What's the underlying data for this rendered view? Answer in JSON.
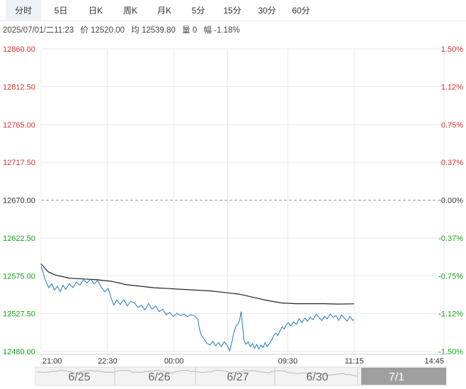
{
  "tabs": [
    {
      "label": "分时",
      "active": true
    },
    {
      "label": "5日",
      "active": false
    },
    {
      "label": "日K",
      "active": false
    },
    {
      "label": "周K",
      "active": false
    },
    {
      "label": "月K",
      "active": false
    },
    {
      "label": "5分",
      "active": false
    },
    {
      "label": "15分",
      "active": false
    },
    {
      "label": "30分",
      "active": false
    },
    {
      "label": "60分",
      "active": false
    }
  ],
  "info": {
    "datetime": "2025/07/01/二11:23",
    "price": "价 12520.00",
    "avg": "均 12539.80",
    "volume": "量 0",
    "change": "幅 -1.18%"
  },
  "colors": {
    "up": "#e03030",
    "down": "#19a119",
    "flat": "#333333",
    "price_line": "#1f78c8",
    "avg_line": "#222222",
    "grid": "#e8e8e8",
    "ref_line": "#999999"
  },
  "chart_data": {
    "type": "line",
    "title": "",
    "ylim": [
      12480,
      12860
    ],
    "prev_close": 12670,
    "y_ticks": [
      "12860.00",
      "12812.50",
      "12765.00",
      "12717.50",
      "12670.00",
      "12622.50",
      "12575.00",
      "12527.50",
      "12480.00"
    ],
    "pct_ticks": [
      "1.50%",
      "1.12%",
      "0.75%",
      "0.37%",
      "0.00%",
      "-0.37%",
      "-0.75%",
      "-1.12%",
      "-1.50%"
    ],
    "x_ticks": [
      "21:00",
      "22:30",
      "00:00",
      "09:30",
      "11:15",
      "14:45"
    ],
    "session_minutes": 570,
    "current_minute": 443,
    "series": [
      {
        "name": "",
        "style": "price",
        "points": [
          [
            0,
            12587
          ],
          [
            3,
            12579
          ],
          [
            5,
            12572
          ],
          [
            8,
            12566
          ],
          [
            11,
            12560
          ],
          [
            15,
            12565
          ],
          [
            19,
            12557
          ],
          [
            23,
            12562
          ],
          [
            27,
            12555
          ],
          [
            31,
            12563
          ],
          [
            35,
            12558
          ],
          [
            40,
            12565
          ],
          [
            45,
            12560
          ],
          [
            50,
            12567
          ],
          [
            55,
            12563
          ],
          [
            60,
            12570
          ],
          [
            65,
            12566
          ],
          [
            70,
            12571
          ],
          [
            75,
            12565
          ],
          [
            80,
            12569
          ],
          [
            85,
            12561
          ],
          [
            90,
            12555
          ],
          [
            95,
            12559
          ],
          [
            100,
            12545
          ],
          [
            103,
            12538
          ],
          [
            107,
            12545
          ],
          [
            112,
            12539
          ],
          [
            117,
            12545
          ],
          [
            122,
            12537
          ],
          [
            127,
            12543
          ],
          [
            132,
            12541
          ],
          [
            137,
            12535
          ],
          [
            142,
            12538
          ],
          [
            147,
            12532
          ],
          [
            152,
            12540
          ],
          [
            157,
            12533
          ],
          [
            162,
            12537
          ],
          [
            167,
            12530
          ],
          [
            172,
            12533
          ],
          [
            177,
            12526
          ],
          [
            182,
            12529
          ],
          [
            187,
            12524
          ],
          [
            192,
            12528
          ],
          [
            197,
            12525
          ],
          [
            202,
            12527
          ],
          [
            207,
            12524
          ],
          [
            212,
            12526
          ],
          [
            217,
            12525
          ],
          [
            222,
            12520
          ],
          [
            224,
            12508
          ],
          [
            227,
            12500
          ],
          [
            231,
            12495
          ],
          [
            235,
            12490
          ],
          [
            239,
            12488
          ],
          [
            243,
            12493
          ],
          [
            247,
            12487
          ],
          [
            251,
            12491
          ],
          [
            255,
            12486
          ],
          [
            259,
            12492
          ],
          [
            263,
            12488
          ],
          [
            267,
            12481
          ],
          [
            270,
            12492
          ],
          [
            273,
            12505
          ],
          [
            276,
            12512
          ],
          [
            279,
            12515
          ],
          [
            281,
            12520
          ],
          [
            283,
            12530
          ],
          [
            285,
            12512
          ],
          [
            287,
            12494
          ],
          [
            290,
            12489
          ],
          [
            293,
            12492
          ],
          [
            296,
            12486
          ],
          [
            299,
            12490
          ],
          [
            302,
            12484
          ],
          [
            305,
            12489
          ],
          [
            308,
            12483
          ],
          [
            311,
            12488
          ],
          [
            314,
            12485
          ],
          [
            317,
            12491
          ],
          [
            320,
            12486
          ],
          [
            323,
            12490
          ],
          [
            326,
            12494
          ],
          [
            329,
            12500
          ],
          [
            332,
            12503
          ],
          [
            335,
            12500
          ],
          [
            338,
            12506
          ],
          [
            341,
            12511
          ],
          [
            344,
            12508
          ],
          [
            347,
            12514
          ],
          [
            350,
            12516
          ],
          [
            353,
            12512
          ],
          [
            357,
            12517
          ],
          [
            361,
            12514
          ],
          [
            365,
            12521
          ],
          [
            369,
            12516
          ],
          [
            373,
            12522
          ],
          [
            377,
            12518
          ],
          [
            381,
            12523
          ],
          [
            385,
            12520
          ],
          [
            389,
            12527
          ],
          [
            393,
            12523
          ],
          [
            397,
            12519
          ],
          [
            401,
            12524
          ],
          [
            405,
            12521
          ],
          [
            409,
            12527
          ],
          [
            413,
            12523
          ],
          [
            417,
            12525
          ],
          [
            421,
            12519
          ],
          [
            425,
            12526
          ],
          [
            429,
            12522
          ],
          [
            433,
            12518
          ],
          [
            437,
            12524
          ],
          [
            441,
            12519
          ],
          [
            443,
            12520
          ]
        ]
      },
      {
        "name": "",
        "style": "avg",
        "points": [
          [
            0,
            12590
          ],
          [
            10,
            12580
          ],
          [
            20,
            12576
          ],
          [
            40,
            12572
          ],
          [
            60,
            12571
          ],
          [
            80,
            12570
          ],
          [
            100,
            12568
          ],
          [
            120,
            12564
          ],
          [
            140,
            12562
          ],
          [
            160,
            12560
          ],
          [
            180,
            12559
          ],
          [
            200,
            12558
          ],
          [
            220,
            12557
          ],
          [
            240,
            12556
          ],
          [
            260,
            12554
          ],
          [
            280,
            12552
          ],
          [
            300,
            12548
          ],
          [
            320,
            12544
          ],
          [
            340,
            12541
          ],
          [
            360,
            12540
          ],
          [
            380,
            12540
          ],
          [
            400,
            12540
          ],
          [
            420,
            12539.5
          ],
          [
            443,
            12539.8
          ]
        ]
      }
    ]
  },
  "navigator": {
    "dates": [
      "6/25",
      "6/26",
      "6/27",
      "6/30",
      "7/1"
    ]
  }
}
